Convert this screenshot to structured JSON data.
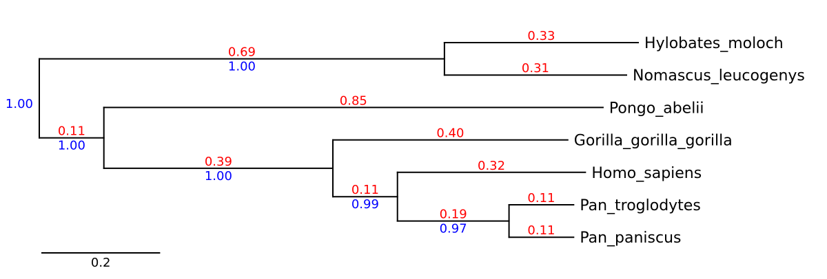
{
  "chart_data": {
    "type": "phylogram-tree",
    "orientation": "left-to-right",
    "background_color": "#ffffff",
    "line_color": "#000000",
    "tip_label_color": "#000000",
    "branch_length_label_color": "#ff0000",
    "support_label_color": "#0000ff",
    "scale_bar": {
      "label": "0.2",
      "value": 0.2
    },
    "tips_top_to_bottom": [
      "Hylobates_moloch",
      "Nomascus_leucogenys",
      "Pongo_abelii",
      "Gorilla_gorilla_gorilla",
      "Homo_sapiens",
      "Pan_troglodytes",
      "Pan_paniscus"
    ],
    "tree": {
      "root": {
        "support": "1.00",
        "children": [
          {
            "branch_length": "0.69",
            "support": "1.00",
            "children": [
              {
                "name": "Hylobates_moloch",
                "branch_length": "0.33"
              },
              {
                "name": "Nomascus_leucogenys",
                "branch_length": "0.31"
              }
            ]
          },
          {
            "branch_length": "0.11",
            "support": "1.00",
            "children": [
              {
                "name": "Pongo_abelii",
                "branch_length": "0.85"
              },
              {
                "branch_length": "0.39",
                "support": "1.00",
                "children": [
                  {
                    "name": "Gorilla_gorilla_gorilla",
                    "branch_length": "0.40"
                  },
                  {
                    "branch_length": "0.11",
                    "support": "0.99",
                    "children": [
                      {
                        "name": "Homo_sapiens",
                        "branch_length": "0.32"
                      },
                      {
                        "branch_length": "0.19",
                        "support": "0.97",
                        "children": [
                          {
                            "name": "Pan_troglodytes",
                            "branch_length": "0.11"
                          },
                          {
                            "name": "Pan_paniscus",
                            "branch_length": "0.11"
                          }
                        ]
                      }
                    ]
                  }
                ]
              }
            ]
          }
        ]
      }
    }
  }
}
